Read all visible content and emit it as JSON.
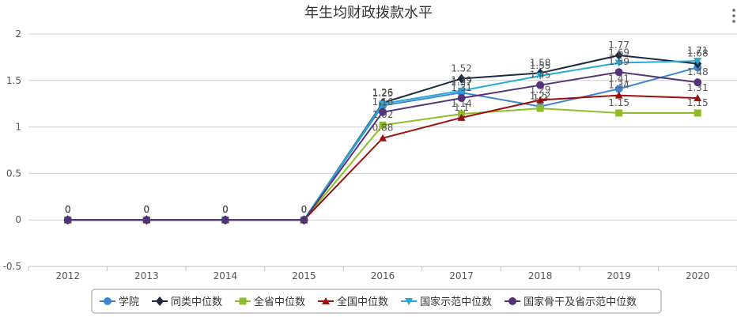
{
  "chart_data": {
    "type": "line",
    "title": "年生均财政拨款水平",
    "xlabel": "",
    "ylabel": "",
    "categories": [
      "2012",
      "2013",
      "2014",
      "2015",
      "2016",
      "2017",
      "2018",
      "2019",
      "2020"
    ],
    "ylim": [
      -0.5,
      2
    ],
    "yticks": [
      "-0.5",
      "0",
      "0.5",
      "1",
      "1.5",
      "2"
    ],
    "grid": true,
    "legend_position": "bottom",
    "series": [
      {
        "name": "学院",
        "color": "#3f86d1",
        "marker": "circle",
        "values": [
          0,
          0,
          0,
          0,
          1.23,
          1.37,
          1.22,
          1.41,
          1.64
        ],
        "labels": [
          "0",
          "0",
          "0",
          "0",
          "",
          "1.37",
          "1.22",
          "1.41",
          ""
        ]
      },
      {
        "name": "同类中位数",
        "color": "#1b2a3f",
        "marker": "diamond",
        "values": [
          0,
          0,
          0,
          0,
          1.26,
          1.52,
          1.58,
          1.77,
          1.68
        ],
        "labels": [
          "0",
          "0",
          "0",
          "0",
          "1.26",
          "1.52",
          "1.58",
          "1.77",
          "1.68"
        ]
      },
      {
        "name": "全省中位数",
        "color": "#8ebd2a",
        "marker": "square",
        "values": [
          0,
          0,
          0,
          0,
          1.02,
          1.14,
          1.2,
          1.15,
          1.15
        ],
        "labels": [
          "0",
          "0",
          "0",
          "0",
          "1.02",
          "1.14",
          "1.2",
          "1.15",
          "1.15"
        ]
      },
      {
        "name": "全国中位数",
        "color": "#9a1010",
        "marker": "triangle",
        "values": [
          0,
          0,
          0,
          0,
          0.88,
          1.1,
          1.29,
          1.34,
          1.31
        ],
        "labels": [
          "0",
          "0",
          "0",
          "0",
          "0.88",
          "1.1",
          "1.29",
          "1.34",
          "1.31"
        ]
      },
      {
        "name": "国家示范中位数",
        "color": "#28a9d4",
        "marker": "triangle-down",
        "values": [
          0,
          0,
          0,
          0,
          1.25,
          1.39,
          1.55,
          1.69,
          1.71
        ],
        "labels": [
          "0",
          "0",
          "0",
          "0",
          "1.25",
          "1.39",
          "1.55",
          "1.69",
          "1.71"
        ]
      },
      {
        "name": "国家骨干及省示范中位数",
        "color": "#533478",
        "marker": "circle",
        "values": [
          0,
          0,
          0,
          0,
          1.16,
          1.31,
          1.45,
          1.59,
          1.48
        ],
        "labels": [
          "0",
          "0",
          "0",
          "0",
          "1.16",
          "1.31",
          "1.45",
          "1.59",
          "1.48"
        ]
      }
    ]
  }
}
